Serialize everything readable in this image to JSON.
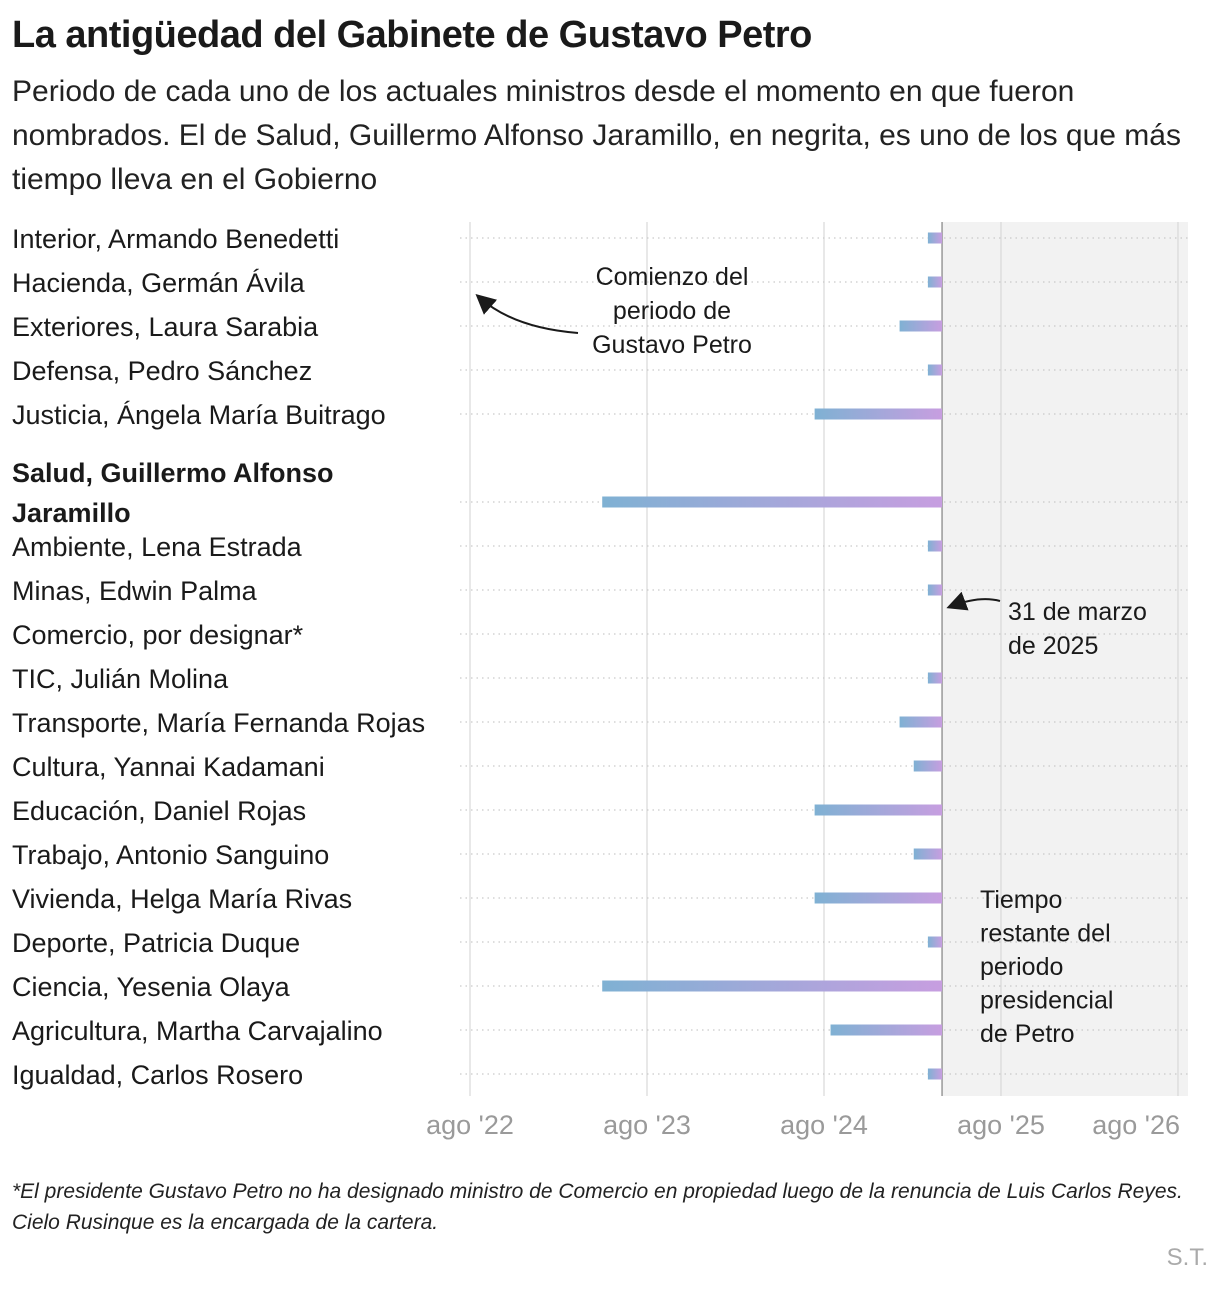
{
  "header": {
    "title": "La antigüedad del Gabinete de Gustavo Petro",
    "subtitle": "Periodo de cada uno de los actuales ministros desde el momento en que fueron nombrados. El de Salud, Guillermo Alfonso Jaramillo, en negrita, es uno de los que más tiempo lleva en el Gobierno"
  },
  "chart_data": {
    "type": "bar",
    "orientation": "horizontal",
    "range_bars": true,
    "x_unit": "years (decimal)",
    "xlim": [
      2022.6,
      2026.6
    ],
    "x_ticks": [
      {
        "value": 2022.583,
        "label": "ago '22"
      },
      {
        "value": 2023.583,
        "label": "ago '23"
      },
      {
        "value": 2024.583,
        "label": "ago '24"
      },
      {
        "value": 2025.583,
        "label": "ago '25"
      },
      {
        "value": 2026.583,
        "label": "ago '26"
      }
    ],
    "reference_date": {
      "value": 2025.25,
      "label": "31 de marzo de 2025"
    },
    "shaded_region": {
      "from": 2025.25,
      "to": 2026.6,
      "label": "Tiempo restante del periodo presidencial de Petro"
    },
    "period_start_annotation": "Comienzo del periodo de Gustavo Petro",
    "colors": {
      "bar_start": "#7fb1d3",
      "bar_end": "#c79ee0",
      "shade": "#f2f2f2",
      "grid": "#d9d9d9",
      "ref_line": "#999999"
    },
    "categories": [
      {
        "label": "Interior, Armando Benedetti",
        "start": 2025.17,
        "end": 2025.25,
        "bold": false
      },
      {
        "label": "Hacienda, Germán Ávila",
        "start": 2025.17,
        "end": 2025.25,
        "bold": false
      },
      {
        "label": "Exteriores, Laura Sarabia",
        "start": 2025.01,
        "end": 2025.25,
        "bold": false
      },
      {
        "label": "Defensa, Pedro Sánchez",
        "start": 2025.17,
        "end": 2025.25,
        "bold": false
      },
      {
        "label": "Justicia, Ángela María Buitrago",
        "start": 2024.53,
        "end": 2025.25,
        "bold": false
      },
      {
        "label": "Salud, Guillermo Alfonso Jaramillo",
        "start": 2023.33,
        "end": 2025.25,
        "bold": true
      },
      {
        "label": "Ambiente, Lena Estrada",
        "start": 2025.17,
        "end": 2025.25,
        "bold": false
      },
      {
        "label": "Minas, Edwin Palma",
        "start": 2025.17,
        "end": 2025.25,
        "bold": false
      },
      {
        "label": "Comercio, por designar*",
        "start": null,
        "end": null,
        "bold": false
      },
      {
        "label": "TIC, Julián Molina",
        "start": 2025.17,
        "end": 2025.25,
        "bold": false
      },
      {
        "label": "Transporte, María Fernanda Rojas",
        "start": 2025.01,
        "end": 2025.25,
        "bold": false
      },
      {
        "label": "Cultura, Yannai Kadamani",
        "start": 2025.09,
        "end": 2025.25,
        "bold": false
      },
      {
        "label": "Educación, Daniel Rojas",
        "start": 2024.53,
        "end": 2025.25,
        "bold": false
      },
      {
        "label": "Trabajo, Antonio Sanguino",
        "start": 2025.09,
        "end": 2025.25,
        "bold": false
      },
      {
        "label": "Vivienda, Helga María Rivas",
        "start": 2024.53,
        "end": 2025.25,
        "bold": false
      },
      {
        "label": "Deporte, Patricia Duque",
        "start": 2025.17,
        "end": 2025.25,
        "bold": false
      },
      {
        "label": "Ciencia, Yesenia Olaya",
        "start": 2023.33,
        "end": 2025.25,
        "bold": false
      },
      {
        "label": "Agricultura, Martha Carvajalino",
        "start": 2024.62,
        "end": 2025.25,
        "bold": false
      },
      {
        "label": "Igualdad, Carlos Rosero",
        "start": 2025.17,
        "end": 2025.25,
        "bold": false
      }
    ]
  },
  "footnote": "*El presidente Gustavo Petro no ha designado ministro de Comercio en propiedad luego de la renuncia de Luis Carlos Reyes. Cielo Rusinque es la encargada de la cartera.",
  "credit": "S.T."
}
